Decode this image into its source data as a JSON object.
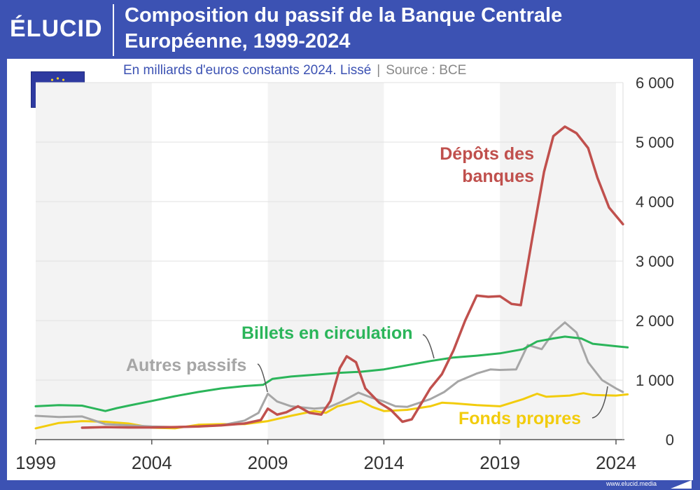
{
  "header": {
    "logo": "ÉLUCID",
    "title_line1": "Composition du passif de la Banque Centrale",
    "title_line2": "Européenne, 1999-2024"
  },
  "subtitle": {
    "text": "En milliards d'euros constants 2024. Lissé",
    "separator": "|",
    "source": "Source : BCE"
  },
  "footer": {
    "url": "www.elucid.media"
  },
  "colors": {
    "brand": "#3c52b3",
    "depots": "#c0504d",
    "billets": "#2bb55a",
    "autres": "#a6a6a6",
    "fonds": "#f2cc0d"
  },
  "chart_data": {
    "type": "line",
    "title": "Composition du passif de la Banque Centrale Européenne, 1999-2024",
    "subtitle": "En milliards d'euros constants 2024. Lissé | Source : BCE",
    "xlim": [
      1999,
      2024
    ],
    "ylim": [
      0,
      6000
    ],
    "x_ticks": [
      "1999",
      "2004",
      "2009",
      "2014",
      "2019",
      "2024"
    ],
    "y_ticks": [
      "0",
      "1 000",
      "2 000",
      "3 000",
      "4 000",
      "5 000",
      "6 000"
    ],
    "y_axis_side": "right",
    "grid": true,
    "series": [
      {
        "name": "Dépôts des banques",
        "color": "#c0504d",
        "points": [
          [
            2001,
            200
          ],
          [
            2002,
            210
          ],
          [
            2003,
            205
          ],
          [
            2004,
            205
          ],
          [
            2005,
            210
          ],
          [
            2006,
            220
          ],
          [
            2007,
            240
          ],
          [
            2008,
            270
          ],
          [
            2008.7,
            330
          ],
          [
            2009,
            520
          ],
          [
            2009.4,
            420
          ],
          [
            2009.8,
            460
          ],
          [
            2010.3,
            560
          ],
          [
            2010.8,
            450
          ],
          [
            2011.3,
            420
          ],
          [
            2011.7,
            650
          ],
          [
            2012.1,
            1200
          ],
          [
            2012.4,
            1400
          ],
          [
            2012.8,
            1300
          ],
          [
            2013.2,
            860
          ],
          [
            2013.8,
            620
          ],
          [
            2014.3,
            500
          ],
          [
            2014.8,
            300
          ],
          [
            2015.2,
            340
          ],
          [
            2015.6,
            600
          ],
          [
            2016,
            860
          ],
          [
            2016.5,
            1100
          ],
          [
            2017,
            1500
          ],
          [
            2017.5,
            2000
          ],
          [
            2018,
            2420
          ],
          [
            2018.5,
            2400
          ],
          [
            2019,
            2410
          ],
          [
            2019.5,
            2280
          ],
          [
            2019.9,
            2260
          ],
          [
            2020.4,
            3400
          ],
          [
            2020.9,
            4500
          ],
          [
            2021.3,
            5100
          ],
          [
            2021.8,
            5260
          ],
          [
            2022.3,
            5150
          ],
          [
            2022.8,
            4900
          ],
          [
            2023.2,
            4400
          ],
          [
            2023.7,
            3900
          ],
          [
            2024.3,
            3620
          ]
        ]
      },
      {
        "name": "Billets en circulation",
        "color": "#2bb55a",
        "points": [
          [
            1999,
            560
          ],
          [
            2000,
            580
          ],
          [
            2001,
            570
          ],
          [
            2002,
            480
          ],
          [
            2002.5,
            530
          ],
          [
            2003,
            570
          ],
          [
            2004,
            650
          ],
          [
            2005,
            730
          ],
          [
            2006,
            800
          ],
          [
            2007,
            860
          ],
          [
            2008,
            900
          ],
          [
            2008.8,
            920
          ],
          [
            2009.2,
            1020
          ],
          [
            2010,
            1060
          ],
          [
            2011,
            1090
          ],
          [
            2012,
            1120
          ],
          [
            2013,
            1140
          ],
          [
            2014,
            1180
          ],
          [
            2015,
            1250
          ],
          [
            2016,
            1320
          ],
          [
            2017,
            1380
          ],
          [
            2018,
            1410
          ],
          [
            2019,
            1450
          ],
          [
            2020,
            1520
          ],
          [
            2020.6,
            1650
          ],
          [
            2021.3,
            1700
          ],
          [
            2021.8,
            1730
          ],
          [
            2022.5,
            1700
          ],
          [
            2023,
            1610
          ],
          [
            2024,
            1570
          ],
          [
            2024.5,
            1550
          ]
        ]
      },
      {
        "name": "Autres passifs",
        "color": "#a6a6a6",
        "points": [
          [
            1999,
            400
          ],
          [
            2000,
            380
          ],
          [
            2001,
            390
          ],
          [
            2002,
            260
          ],
          [
            2003,
            240
          ],
          [
            2004,
            220
          ],
          [
            2005,
            210
          ],
          [
            2006,
            220
          ],
          [
            2007,
            240
          ],
          [
            2008,
            320
          ],
          [
            2008.6,
            450
          ],
          [
            2009,
            770
          ],
          [
            2009.4,
            640
          ],
          [
            2010,
            560
          ],
          [
            2011,
            520
          ],
          [
            2011.6,
            540
          ],
          [
            2012.2,
            640
          ],
          [
            2012.9,
            790
          ],
          [
            2013.5,
            700
          ],
          [
            2014,
            640
          ],
          [
            2014.5,
            560
          ],
          [
            2015,
            550
          ],
          [
            2016,
            680
          ],
          [
            2016.6,
            800
          ],
          [
            2017.2,
            980
          ],
          [
            2018,
            1110
          ],
          [
            2018.6,
            1180
          ],
          [
            2019,
            1170
          ],
          [
            2019.7,
            1180
          ],
          [
            2020.2,
            1590
          ],
          [
            2020.8,
            1520
          ],
          [
            2021.3,
            1800
          ],
          [
            2021.8,
            1970
          ],
          [
            2022.3,
            1800
          ],
          [
            2022.8,
            1300
          ],
          [
            2023.4,
            1000
          ],
          [
            2024,
            860
          ],
          [
            2024.3,
            800
          ]
        ]
      },
      {
        "name": "Fonds propres",
        "color": "#f2cc0d",
        "points": [
          [
            1999,
            190
          ],
          [
            2000,
            280
          ],
          [
            2001,
            310
          ],
          [
            2002,
            300
          ],
          [
            2003,
            270
          ],
          [
            2004,
            200
          ],
          [
            2005,
            190
          ],
          [
            2006,
            250
          ],
          [
            2007,
            260
          ],
          [
            2008,
            260
          ],
          [
            2009,
            310
          ],
          [
            2010,
            400
          ],
          [
            2011,
            480
          ],
          [
            2011.5,
            450
          ],
          [
            2012,
            560
          ],
          [
            2013,
            650
          ],
          [
            2013.5,
            550
          ],
          [
            2014,
            480
          ],
          [
            2015,
            500
          ],
          [
            2016,
            560
          ],
          [
            2016.5,
            620
          ],
          [
            2017,
            610
          ],
          [
            2018,
            580
          ],
          [
            2019,
            560
          ],
          [
            2020,
            680
          ],
          [
            2020.6,
            770
          ],
          [
            2021,
            720
          ],
          [
            2022,
            740
          ],
          [
            2022.6,
            780
          ],
          [
            2023,
            750
          ],
          [
            2024,
            740
          ],
          [
            2024.5,
            760
          ]
        ]
      }
    ],
    "labels": [
      {
        "series": "Dépôts des banques",
        "lines": [
          "Dépôts des",
          "banques"
        ]
      },
      {
        "series": "Billets en circulation",
        "lines": [
          "Billets en circulation"
        ]
      },
      {
        "series": "Autres passifs",
        "lines": [
          "Autres passifs"
        ]
      },
      {
        "series": "Fonds propres",
        "lines": [
          "Fonds propres"
        ]
      }
    ]
  }
}
